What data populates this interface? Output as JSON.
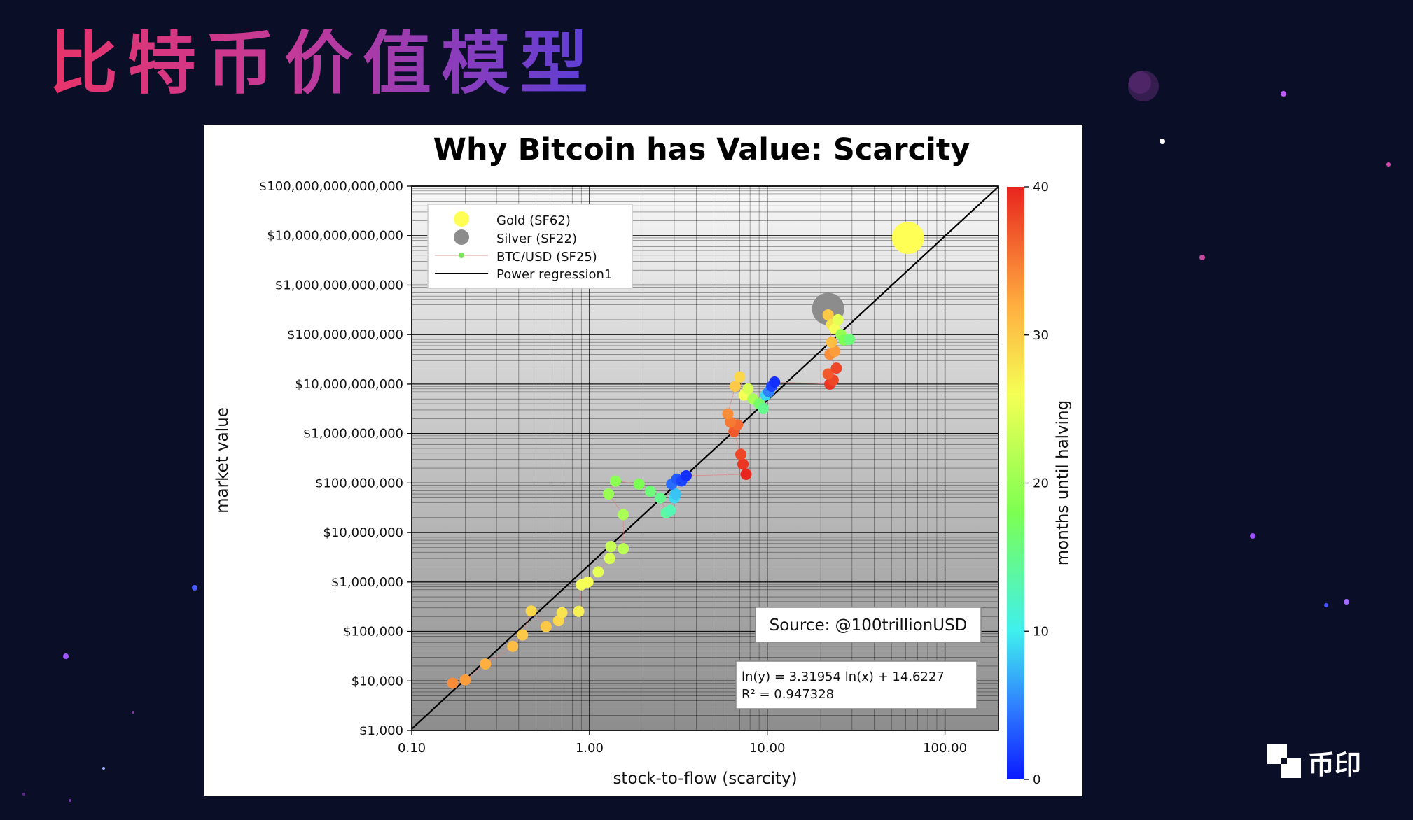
{
  "slide": {
    "title": "比特币价值模型",
    "brand": "币印"
  },
  "chart_data": {
    "type": "scatter",
    "title": "Why Bitcoin has Value: Scarcity",
    "xlabel": "stock-to-flow (scarcity)",
    "ylabel": "market value",
    "x_scale": "log",
    "y_scale": "log",
    "xlim": [
      0.1,
      200
    ],
    "ylim": [
      1000,
      100000000000000
    ],
    "x_ticks": [
      {
        "value": 0.1,
        "label": "0.10"
      },
      {
        "value": 1,
        "label": "1.00"
      },
      {
        "value": 10,
        "label": "10.00"
      },
      {
        "value": 100,
        "label": "100.00"
      }
    ],
    "y_ticks": [
      {
        "value": 1000,
        "label": "$1,000"
      },
      {
        "value": 10000,
        "label": "$10,000"
      },
      {
        "value": 100000,
        "label": "$100,000"
      },
      {
        "value": 1000000,
        "label": "$1,000,000"
      },
      {
        "value": 10000000,
        "label": "$10,000,000"
      },
      {
        "value": 100000000,
        "label": "$100,000,000"
      },
      {
        "value": 1000000000,
        "label": "$1,000,000,000"
      },
      {
        "value": 10000000000,
        "label": "$10,000,000,000"
      },
      {
        "value": 100000000000,
        "label": "$100,000,000,000"
      },
      {
        "value": 1000000000000,
        "label": "$1,000,000,000,000"
      },
      {
        "value": 10000000000000,
        "label": "$10,000,000,000,000"
      },
      {
        "value": 100000000000000,
        "label": "$100,000,000,000,000"
      }
    ],
    "grid": true,
    "legend_position": "top-left",
    "legend": [
      {
        "label": "Gold (SF62)",
        "color": "#ffff55",
        "marker": "circle"
      },
      {
        "label": "Silver (SF22)",
        "color": "#8c8c8c",
        "marker": "circle"
      },
      {
        "label": "BTC/USD (SF25)",
        "color": "#7be35a",
        "marker": "line-dot"
      },
      {
        "label": "Power regression1",
        "color": "#000000",
        "marker": "line"
      }
    ],
    "colorbar": {
      "label": "months until halving",
      "range": [
        0,
        40
      ],
      "ticks": [
        {
          "value": 0,
          "label": "0"
        },
        {
          "value": 10,
          "label": "10"
        },
        {
          "value": 20,
          "label": "20"
        },
        {
          "value": 30,
          "label": "30"
        },
        {
          "value": 40,
          "label": "40"
        }
      ]
    },
    "regression": {
      "slope": 3.31954,
      "intercept": 14.6227
    },
    "annotations": {
      "source": "Source: @100trillionUSD",
      "equation": "ln(y) = 3.31954 ln(x) + 14.6227",
      "r_squared": "R² = 0.947328"
    },
    "commodities": [
      {
        "name": "Gold",
        "x": 62,
        "y": 9000000000000,
        "color": "#ffff55"
      },
      {
        "name": "Silver",
        "x": 22,
        "y": 330000000000,
        "color": "#8c8c8c"
      }
    ],
    "btc_points": [
      {
        "x": 0.17,
        "y": 9000,
        "m": 34
      },
      {
        "x": 0.2,
        "y": 10500,
        "m": 33
      },
      {
        "x": 0.26,
        "y": 22000,
        "m": 32
      },
      {
        "x": 0.37,
        "y": 50000,
        "m": 31
      },
      {
        "x": 0.42,
        "y": 85000,
        "m": 30
      },
      {
        "x": 0.47,
        "y": 260000,
        "m": 29
      },
      {
        "x": 0.57,
        "y": 125000,
        "m": 30
      },
      {
        "x": 0.67,
        "y": 165000,
        "m": 29
      },
      {
        "x": 0.7,
        "y": 240000,
        "m": 28
      },
      {
        "x": 0.87,
        "y": 255000,
        "m": 27
      },
      {
        "x": 0.9,
        "y": 880000,
        "m": 26
      },
      {
        "x": 0.98,
        "y": 1000000,
        "m": 26
      },
      {
        "x": 1.12,
        "y": 1600000,
        "m": 25
      },
      {
        "x": 1.3,
        "y": 3000000,
        "m": 24
      },
      {
        "x": 1.32,
        "y": 5200000,
        "m": 23
      },
      {
        "x": 1.55,
        "y": 4700000,
        "m": 22
      },
      {
        "x": 1.55,
        "y": 23000000,
        "m": 21
      },
      {
        "x": 1.28,
        "y": 60000000,
        "m": 20
      },
      {
        "x": 1.4,
        "y": 110000000,
        "m": 19
      },
      {
        "x": 1.9,
        "y": 95000000,
        "m": 18
      },
      {
        "x": 2.2,
        "y": 68000000,
        "m": 16
      },
      {
        "x": 2.5,
        "y": 50000000,
        "m": 15
      },
      {
        "x": 2.7,
        "y": 25000000,
        "m": 14
      },
      {
        "x": 2.85,
        "y": 28000000,
        "m": 13
      },
      {
        "x": 3.0,
        "y": 50000000,
        "m": 9
      },
      {
        "x": 3.05,
        "y": 60000000,
        "m": 8
      },
      {
        "x": 2.9,
        "y": 95000000,
        "m": 4
      },
      {
        "x": 3.1,
        "y": 120000000,
        "m": 3
      },
      {
        "x": 3.3,
        "y": 110000000,
        "m": 2
      },
      {
        "x": 3.5,
        "y": 140000000,
        "m": 1
      },
      {
        "x": 7.6,
        "y": 150000000,
        "m": 40
      },
      {
        "x": 7.3,
        "y": 240000000,
        "m": 39
      },
      {
        "x": 7.1,
        "y": 380000000,
        "m": 38
      },
      {
        "x": 6.5,
        "y": 1100000000,
        "m": 37
      },
      {
        "x": 6.8,
        "y": 1500000000,
        "m": 36
      },
      {
        "x": 6.2,
        "y": 1700000000,
        "m": 35
      },
      {
        "x": 6.0,
        "y": 2500000000,
        "m": 34
      },
      {
        "x": 6.6,
        "y": 9000000000,
        "m": 30
      },
      {
        "x": 7.0,
        "y": 14000000000,
        "m": 29
      },
      {
        "x": 7.4,
        "y": 6000000000,
        "m": 26
      },
      {
        "x": 7.8,
        "y": 8000000000,
        "m": 24
      },
      {
        "x": 8.3,
        "y": 5000000000,
        "m": 21
      },
      {
        "x": 9.0,
        "y": 4000000000,
        "m": 17
      },
      {
        "x": 9.5,
        "y": 3200000000,
        "m": 15
      },
      {
        "x": 9.8,
        "y": 6000000000,
        "m": 9
      },
      {
        "x": 10.2,
        "y": 7000000000,
        "m": 5
      },
      {
        "x": 10.6,
        "y": 9000000000,
        "m": 2
      },
      {
        "x": 11.0,
        "y": 11000000000,
        "m": 1
      },
      {
        "x": 22.5,
        "y": 10000000000,
        "m": 39
      },
      {
        "x": 23.5,
        "y": 12000000000,
        "m": 38
      },
      {
        "x": 22.0,
        "y": 16000000000,
        "m": 37
      },
      {
        "x": 24.5,
        "y": 21000000000,
        "m": 38
      },
      {
        "x": 22.5,
        "y": 40000000000,
        "m": 34
      },
      {
        "x": 24.0,
        "y": 46000000000,
        "m": 33
      },
      {
        "x": 23.0,
        "y": 70000000000,
        "m": 31
      },
      {
        "x": 22.0,
        "y": 250000000000,
        "m": 30
      },
      {
        "x": 23.0,
        "y": 160000000000,
        "m": 28
      },
      {
        "x": 24.0,
        "y": 130000000000,
        "m": 26
      },
      {
        "x": 25.0,
        "y": 200000000000,
        "m": 25
      },
      {
        "x": 26.0,
        "y": 100000000000,
        "m": 20
      },
      {
        "x": 27.0,
        "y": 78000000000,
        "m": 18
      },
      {
        "x": 29.0,
        "y": 80000000000,
        "m": 16
      }
    ]
  }
}
